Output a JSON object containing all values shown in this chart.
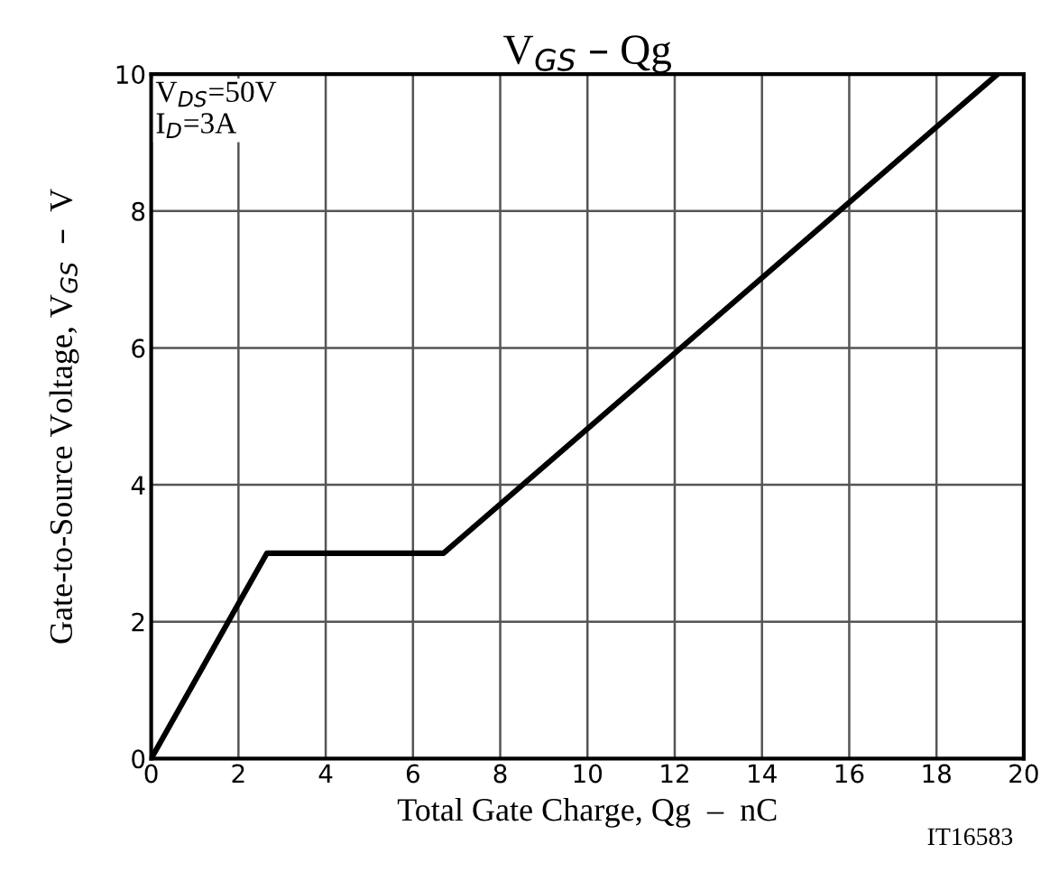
{
  "chart_data": {
    "type": "line",
    "title": "V$_{GS}$ – Qg",
    "xlabel": "Total Gate Charge, Qg  –  nC",
    "ylabel": "Gate-to-Source Voltage, V$_{GS}$  –  V",
    "x": [
      0,
      2.65,
      6.7,
      19.4
    ],
    "series": [
      {
        "color": "#000000",
        "values": [
          0,
          3,
          3,
          10
        ]
      }
    ],
    "xlim": [
      0,
      20
    ],
    "ylim": [
      0,
      10
    ],
    "xticks": [
      0,
      2,
      4,
      6,
      8,
      10,
      12,
      14,
      16,
      18,
      20
    ],
    "yticks": [
      0,
      2,
      4,
      6,
      8,
      10
    ],
    "grid": true,
    "marker": "none",
    "line_style": "solid",
    "annotations": [
      "V$_{DS}$=50V\nI$_{D}$=3A",
      "IT16583"
    ]
  }
}
